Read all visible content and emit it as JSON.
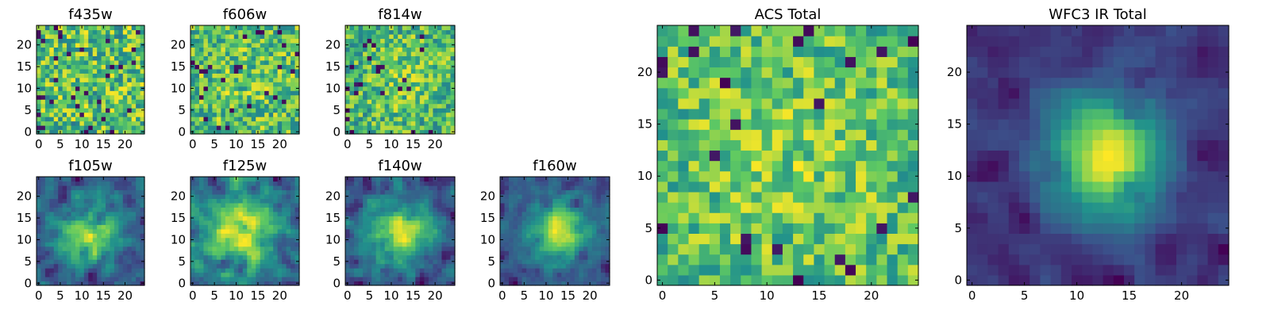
{
  "chart_data": {
    "type": "heatmap",
    "colormap": [
      "#440154",
      "#3b528b",
      "#21918c",
      "#5ec962",
      "#fde725"
    ],
    "panels": [
      {
        "title": "f435w",
        "grid": 25,
        "xticks": [
          0,
          5,
          10,
          15,
          20
        ],
        "yticks": [
          0,
          5,
          10,
          15,
          20
        ],
        "seed": 11,
        "peak": 0.0,
        "peak_x": 12,
        "peak_y": 11,
        "spread": 7,
        "noise": 0.55,
        "dark": 0.05,
        "base": 0.65,
        "smooth": 0
      },
      {
        "title": "f606w",
        "grid": 25,
        "xticks": [
          0,
          5,
          10,
          15,
          20
        ],
        "yticks": [
          0,
          5,
          10,
          15,
          20
        ],
        "seed": 23,
        "peak": 0.05,
        "peak_x": 12,
        "peak_y": 12,
        "spread": 7,
        "noise": 0.5,
        "dark": 0.04,
        "base": 0.66,
        "smooth": 0
      },
      {
        "title": "f814w",
        "grid": 25,
        "xticks": [
          0,
          5,
          10,
          15,
          20
        ],
        "yticks": [
          0,
          5,
          10,
          15,
          20
        ],
        "seed": 37,
        "peak": 0.12,
        "peak_x": 13,
        "peak_y": 13,
        "spread": 6,
        "noise": 0.5,
        "dark": 0.04,
        "base": 0.65,
        "smooth": 0
      },
      {
        "title": "f105w",
        "grid": 25,
        "xticks": [
          0,
          5,
          10,
          15,
          20
        ],
        "yticks": [
          0,
          5,
          10,
          15,
          20
        ],
        "seed": 41,
        "peak": 0.35,
        "peak_x": 12,
        "peak_y": 11,
        "spread": 5,
        "noise": 0.4,
        "dark": 0.03,
        "base": 0.5,
        "smooth": 1
      },
      {
        "title": "f125w",
        "grid": 25,
        "xticks": [
          0,
          5,
          10,
          15,
          20
        ],
        "yticks": [
          0,
          5,
          10,
          15,
          20
        ],
        "seed": 53,
        "peak": 0.3,
        "peak_x": 11,
        "peak_y": 12,
        "spread": 5,
        "noise": 0.42,
        "dark": 0.03,
        "base": 0.52,
        "smooth": 1
      },
      {
        "title": "f140w",
        "grid": 25,
        "xticks": [
          0,
          5,
          10,
          15,
          20
        ],
        "yticks": [
          0,
          5,
          10,
          15,
          20
        ],
        "seed": 67,
        "peak": 0.38,
        "peak_x": 12,
        "peak_y": 12,
        "spread": 5,
        "noise": 0.4,
        "dark": 0.03,
        "base": 0.48,
        "smooth": 1
      },
      {
        "title": "f160w",
        "grid": 25,
        "xticks": [
          0,
          5,
          10,
          15,
          20
        ],
        "yticks": [
          0,
          5,
          10,
          15,
          20
        ],
        "seed": 79,
        "peak": 0.45,
        "peak_x": 13,
        "peak_y": 12,
        "spread": 4,
        "noise": 0.35,
        "dark": 0.03,
        "base": 0.45,
        "smooth": 1
      },
      {
        "title": "ACS Total",
        "grid": 25,
        "xticks": [
          0,
          5,
          10,
          15,
          20
        ],
        "yticks": [
          0,
          5,
          10,
          15,
          20
        ],
        "seed": 97,
        "peak": 0.1,
        "peak_x": 12,
        "peak_y": 12,
        "spread": 7,
        "noise": 0.45,
        "dark": 0.04,
        "base": 0.68,
        "smooth": 0
      },
      {
        "title": "WFC3 IR Total",
        "grid": 25,
        "xticks": [
          0,
          5,
          10,
          15,
          20
        ],
        "yticks": [
          0,
          5,
          10,
          15,
          20
        ],
        "seed": 131,
        "peak": 0.55,
        "peak_x": 13,
        "peak_y": 12,
        "spread": 4,
        "noise": 0.22,
        "dark": 0.02,
        "base": 0.42,
        "smooth": 1
      }
    ]
  }
}
